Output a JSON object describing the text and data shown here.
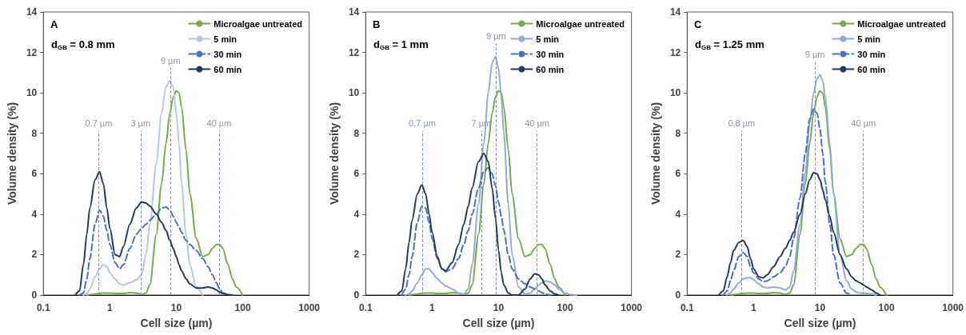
{
  "chart_data": [
    {
      "type": "line",
      "title": "A",
      "xlabel": "Cell size (µm)",
      "ylabel": "Volume density (%)",
      "annotations": [
        "d$_{GB}$ = 0.8 mm"
      ],
      "log": "x",
      "xlim": [
        0.1,
        1000
      ],
      "xticks": [
        0.1,
        1,
        10,
        100,
        1000
      ],
      "ylim": [
        0,
        14
      ],
      "yticks": [
        0,
        2,
        4,
        6,
        8,
        10,
        12,
        14
      ],
      "grid": false,
      "legend": "top right",
      "marker": "none",
      "x": [
        0.3,
        0.35,
        0.4,
        0.45,
        0.5,
        0.6,
        0.7,
        0.8,
        0.9,
        1,
        1.2,
        1.4,
        1.6,
        2,
        2.5,
        3,
        3.5,
        4,
        5,
        6,
        7,
        8,
        9,
        10,
        11,
        12,
        14,
        16,
        20,
        25,
        30,
        35,
        40,
        45,
        50,
        60,
        70,
        80,
        100
      ],
      "series": [
        {
          "name": "Microalgae untreated",
          "color": "#70ad47",
          "line_style": "solid",
          "values": [
            null,
            null,
            null,
            0,
            0.02,
            0.05,
            0.08,
            0.1,
            0.1,
            0.1,
            0.08,
            0.07,
            0.08,
            0.12,
            0.1,
            0.03,
            0.1,
            0.5,
            3,
            5.5,
            7.5,
            9,
            9.8,
            10.1,
            10,
            9.3,
            7.2,
            5,
            2.8,
            1.9,
            2,
            2.3,
            2.5,
            2.5,
            2.3,
            1.5,
            0.8,
            0.4,
            0
          ]
        },
        {
          "name": "5 min",
          "color": "#b4c7e7",
          "line_style": "solid",
          "values": [
            null,
            null,
            0,
            0.05,
            0.3,
            0.9,
            1.3,
            1.5,
            1.4,
            1.1,
            0.8,
            0.55,
            0.5,
            0.6,
            0.75,
            1,
            2,
            3.5,
            6.5,
            9,
            10.3,
            10.6,
            10.3,
            9,
            7.5,
            5.5,
            3,
            1.5,
            0.4,
            0,
            null,
            null,
            null,
            null,
            null,
            null,
            null,
            null,
            null
          ]
        },
        {
          "name": "30 min",
          "color": "#4472c4",
          "line_style": "dashed",
          "values": [
            null,
            0,
            0.1,
            0.8,
            1.8,
            3.5,
            4.2,
            3.9,
            3.2,
            2.5,
            1.6,
            1.3,
            1.5,
            2.3,
            3,
            3.3,
            3.5,
            3.7,
            4,
            4.3,
            4.35,
            4.2,
            3.9,
            3.6,
            3.35,
            3.1,
            2.7,
            2.5,
            2.2,
            1.8,
            1.4,
            1,
            0.6,
            0.3,
            0.1,
            0,
            null,
            null,
            null
          ]
        },
        {
          "name": "60 min",
          "color": "#1f3864",
          "line_style": "solid",
          "values": [
            0,
            0.2,
            1.5,
            3,
            4.3,
            5.7,
            6.1,
            5.5,
            4.3,
            3.3,
            2,
            1.9,
            2.4,
            3.5,
            4.3,
            4.6,
            4.55,
            4.4,
            4,
            3.6,
            3.2,
            2.7,
            2.3,
            1.9,
            1.5,
            1.2,
            0.8,
            0.55,
            0.35,
            0.35,
            0.4,
            0.35,
            0.25,
            0.15,
            0.08,
            0.02,
            0,
            null,
            null
          ]
        }
      ],
      "ref_lines": [
        {
          "axis": "x",
          "value": 0.68,
          "label": "0.7 µm",
          "color": "#8497b0",
          "line_style": "dashed"
        },
        {
          "axis": "x",
          "value": 2.9,
          "label": "3 µm",
          "color": "#8497b0",
          "line_style": "dashed"
        },
        {
          "axis": "x",
          "value": 8.2,
          "label": "9 µm",
          "color": "#8497b0",
          "line_style": "dashed"
        },
        {
          "axis": "x",
          "value": 44,
          "label": "40 µm",
          "color": "#8497b0",
          "line_style": "dashed"
        }
      ]
    },
    {
      "type": "line",
      "title": "B",
      "xlabel": "Cell size (µm)",
      "ylabel": "Volume density (%)",
      "annotations": [
        "d$_{GB}$ = 1 mm"
      ],
      "log": "x",
      "xlim": [
        0.1,
        1000
      ],
      "xticks": [
        0.1,
        1,
        10,
        100,
        1000
      ],
      "ylim": [
        0,
        14
      ],
      "yticks": [
        0,
        2,
        4,
        6,
        8,
        10,
        12,
        14
      ],
      "grid": false,
      "legend": "top right",
      "marker": "none",
      "x": [
        0.3,
        0.35,
        0.4,
        0.45,
        0.5,
        0.6,
        0.7,
        0.8,
        0.9,
        1,
        1.2,
        1.4,
        1.6,
        2,
        2.5,
        3,
        3.5,
        4,
        5,
        6,
        7,
        8,
        9,
        10,
        11,
        12,
        14,
        16,
        20,
        25,
        30,
        35,
        40,
        45,
        50,
        60,
        70,
        80,
        100,
        120,
        150
      ],
      "series": [
        {
          "name": "Microalgae untreated",
          "color": "#70ad47",
          "line_style": "solid",
          "values": [
            null,
            null,
            null,
            0,
            0.02,
            0.05,
            0.08,
            0.1,
            0.1,
            0.1,
            0.08,
            0.07,
            0.08,
            0.12,
            0.1,
            0.03,
            0.1,
            0.5,
            3,
            5.5,
            7.5,
            9,
            9.8,
            10.1,
            10,
            9.3,
            7.2,
            5,
            2.8,
            1.9,
            2,
            2.3,
            2.5,
            2.5,
            2.3,
            1.5,
            0.8,
            0.4,
            0,
            null,
            null
          ]
        },
        {
          "name": "5 min",
          "color": "#8faadc",
          "line_style": "solid",
          "values": [
            null,
            null,
            0,
            0.05,
            0.2,
            0.6,
            1,
            1.3,
            1.3,
            1.1,
            0.8,
            0.6,
            0.45,
            0.3,
            0.1,
            0.05,
            0.3,
            1.5,
            4.5,
            7.5,
            10,
            11.5,
            11.8,
            11.2,
            9.8,
            8,
            4.5,
            2,
            0.4,
            0.05,
            0.1,
            0.3,
            0.5,
            0.6,
            0.7,
            0.65,
            0.5,
            0.3,
            0.1,
            0.02,
            0
          ]
        },
        {
          "name": "30 min",
          "color": "#4472c4",
          "line_style": "dashed",
          "values": [
            null,
            0,
            0.3,
            1,
            1.9,
            3.6,
            4.4,
            4.3,
            3.6,
            2.8,
            1.8,
            1.3,
            1.15,
            1.3,
            1.8,
            2.5,
            3.2,
            4,
            5.3,
            6.1,
            6.3,
            6,
            5.4,
            4.6,
            3.9,
            3.2,
            2,
            1.3,
            0.8,
            0.55,
            0.4,
            0.3,
            0.2,
            0.12,
            0.05,
            0,
            null,
            null,
            null,
            null,
            null
          ]
        },
        {
          "name": "60 min",
          "color": "#1f3864",
          "line_style": "solid",
          "values": [
            0,
            0.2,
            1.3,
            2.6,
            3.7,
            5,
            5.45,
            5,
            4,
            3.1,
            1.9,
            1.3,
            1.2,
            1.6,
            2.5,
            3.5,
            4.4,
            5.3,
            6.6,
            7,
            6.6,
            5.3,
            3.8,
            2.2,
            1.1,
            0.5,
            0.1,
            0,
            0,
            0.3,
            0.8,
            1.05,
            1,
            0.8,
            0.5,
            0.2,
            0.05,
            0,
            null,
            null,
            null
          ]
        }
      ],
      "ref_lines": [
        {
          "axis": "x",
          "value": 0.71,
          "label": "0,7 µm",
          "color": "#8497b0",
          "line_style": "dashed"
        },
        {
          "axis": "x",
          "value": 5.5,
          "label": "7 µm",
          "color": "#8497b0",
          "line_style": "dashed"
        },
        {
          "axis": "x",
          "value": 9.2,
          "label": "9 µm",
          "color": "#8497b0",
          "line_style": "dashed"
        },
        {
          "axis": "x",
          "value": 38,
          "label": "40 µm",
          "color": "#8497b0",
          "line_style": "dashed"
        }
      ]
    },
    {
      "type": "line",
      "title": "C",
      "xlabel": "Cell size (µm)",
      "ylabel": "Volume density (%)",
      "annotations": [
        "d$_{GB}$ = 1.25 mm"
      ],
      "log": "x",
      "xlim": [
        0.1,
        1000
      ],
      "xticks": [
        0.1,
        1,
        10,
        100,
        1000
      ],
      "ylim": [
        0,
        14
      ],
      "yticks": [
        0,
        2,
        4,
        6,
        8,
        10,
        12,
        14
      ],
      "grid": false,
      "legend": "top right",
      "marker": "none",
      "x": [
        0.3,
        0.35,
        0.4,
        0.45,
        0.5,
        0.6,
        0.7,
        0.8,
        0.9,
        1,
        1.2,
        1.4,
        1.6,
        2,
        2.5,
        3,
        3.5,
        4,
        5,
        6,
        7,
        8,
        9,
        10,
        11,
        12,
        14,
        16,
        20,
        25,
        30,
        35,
        40,
        45,
        50,
        60,
        70,
        80,
        100
      ],
      "series": [
        {
          "name": "Microalgae untreated",
          "color": "#70ad47",
          "line_style": "solid",
          "values": [
            null,
            null,
            null,
            0,
            0.02,
            0.05,
            0.08,
            0.1,
            0.1,
            0.1,
            0.08,
            0.07,
            0.08,
            0.12,
            0.1,
            0.03,
            0.1,
            0.5,
            3,
            5.5,
            7.5,
            9,
            9.8,
            10.1,
            10,
            9.3,
            7.2,
            5,
            2.8,
            1.9,
            2,
            2.3,
            2.5,
            2.5,
            2.3,
            1.5,
            0.8,
            0.4,
            0
          ]
        },
        {
          "name": "5 min",
          "color": "#8faadc",
          "line_style": "solid",
          "values": [
            null,
            null,
            0,
            0.1,
            0.3,
            0.6,
            0.8,
            0.85,
            0.85,
            0.75,
            0.55,
            0.4,
            0.35,
            0.4,
            0.35,
            0.25,
            0.4,
            1.2,
            3.5,
            6,
            8.5,
            10,
            10.7,
            10.9,
            10.6,
            9.8,
            7.5,
            5,
            2,
            0.7,
            0.3,
            0.15,
            0.1,
            0.09,
            0.08,
            0.05,
            0,
            null,
            null
          ]
        },
        {
          "name": "30 min",
          "color": "#4472c4",
          "line_style": "dashed",
          "values": [
            null,
            0,
            0.2,
            0.7,
            1.2,
            1.9,
            2.1,
            1.9,
            1.4,
            1.1,
            0.8,
            0.65,
            0.7,
            0.9,
            1.1,
            1.4,
            1.9,
            2.8,
            4.8,
            7,
            8.7,
            9.2,
            9,
            8.2,
            7,
            5.6,
            3.5,
            2,
            0.6,
            0.1,
            0,
            null,
            null,
            null,
            null,
            null,
            null,
            null,
            null
          ]
        },
        {
          "name": "60 min",
          "color": "#1f3864",
          "line_style": "solid",
          "values": [
            0,
            0.2,
            0.9,
            1.6,
            2.2,
            2.6,
            2.7,
            2.4,
            1.8,
            1.3,
            0.9,
            0.85,
            1,
            1.4,
            1.9,
            2.3,
            2.7,
            3.1,
            4,
            5,
            5.7,
            6.05,
            6,
            5.7,
            5.2,
            4.7,
            3.9,
            3.1,
            2,
            1.3,
            0.9,
            0.7,
            0.6,
            0.5,
            0.4,
            0.25,
            0.1,
            0,
            null
          ]
        }
      ],
      "ref_lines": [
        {
          "axis": "x",
          "value": 0.66,
          "label": "0,8 µm",
          "color": "#8497b0",
          "line_style": "dashed"
        },
        {
          "axis": "x",
          "value": 8.4,
          "label": "9 µm",
          "color": "#8497b0",
          "line_style": "dashed"
        },
        {
          "axis": "x",
          "value": 45,
          "label": "40 µm",
          "color": "#8497b0",
          "line_style": "dashed"
        }
      ]
    }
  ]
}
